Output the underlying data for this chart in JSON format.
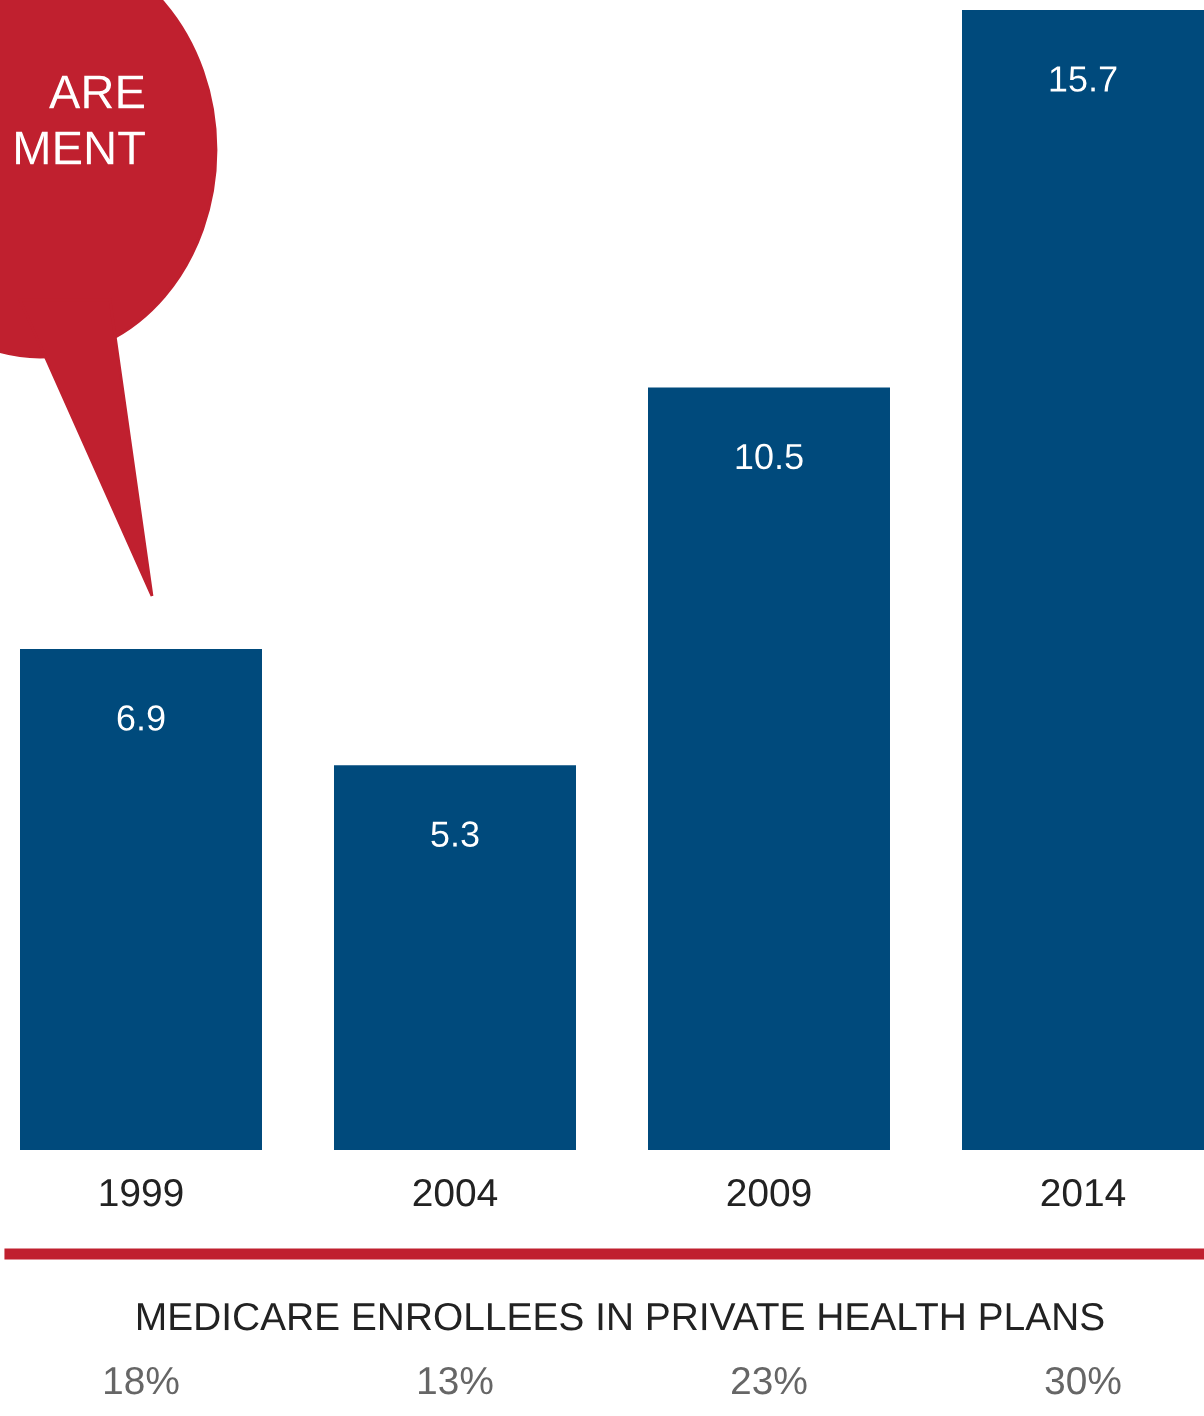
{
  "chart_data": {
    "type": "bar",
    "categories": [
      "1999",
      "2004",
      "2009",
      "2014"
    ],
    "values": [
      6.9,
      5.3,
      10.5,
      15.7
    ],
    "color": "#004a7c",
    "data_labels": true,
    "annotations": [
      "ARE\nMENT",
      "MEDICARE ENROLLEES IN PRIVATE HEALTH PLANS",
      "18%",
      "13%",
      "23%",
      "30%"
    ]
  }
}
